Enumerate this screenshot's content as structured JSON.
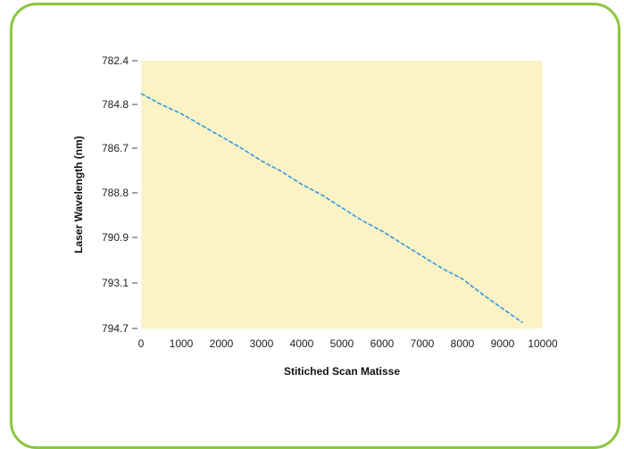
{
  "chart_data": {
    "type": "line",
    "title": "",
    "xlabel": "Stitiched Scan Matisse",
    "ylabel": "Laser Wavelength (nm)",
    "xlim": [
      0,
      10000
    ],
    "ylim": [
      782.4,
      794.7
    ],
    "y_inverted": true,
    "grid": false,
    "x_ticks": [
      "0",
      "1000",
      "2000",
      "3000",
      "4000",
      "5000",
      "6000",
      "7000",
      "8000",
      "9000",
      "10000"
    ],
    "y_ticks": [
      "782.4",
      "784.8",
      "786.7",
      "788.8",
      "790.9",
      "793.1",
      "794.7"
    ],
    "series": [
      {
        "values_x": [
          0,
          500,
          1000,
          1500,
          2000,
          2500,
          3000,
          3500,
          4000,
          4500,
          5000,
          5500,
          6000,
          6500,
          7000,
          7500,
          8000,
          8500,
          9000,
          9500
        ],
        "values_y": [
          784.2,
          784.8,
          785.2,
          785.7,
          786.2,
          786.7,
          787.3,
          787.8,
          788.4,
          788.9,
          789.5,
          790.1,
          790.6,
          791.2,
          791.8,
          792.4,
          792.9,
          793.5,
          794.0,
          794.5
        ]
      }
    ],
    "colors": {
      "plot_background": "#fbf3c6",
      "line": "#3399dd",
      "card_border": "#8cc63f"
    }
  }
}
